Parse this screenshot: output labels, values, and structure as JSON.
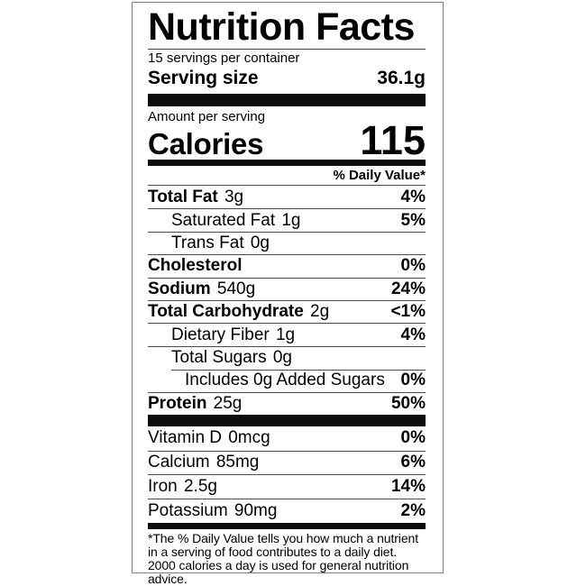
{
  "label": {
    "title": "Nutrition Facts",
    "servings_per_container": "15 servings per container",
    "serving_size_label": "Serving size",
    "serving_size_value": "36.1g",
    "amount_per_serving": "Amount per serving",
    "calories_label": "Calories",
    "calories_value": "115",
    "daily_value_header": "% Daily Value*",
    "nutrients": [
      {
        "name": "Total Fat",
        "amount": "3g",
        "dv": "4%",
        "bold": true,
        "indent": 0
      },
      {
        "name": "Saturated Fat",
        "amount": "1g",
        "dv": "5%",
        "bold": false,
        "indent": 1
      },
      {
        "name": "Trans Fat",
        "amount": "0g",
        "dv": "",
        "bold": false,
        "indent": 1
      },
      {
        "name": "Cholesterol",
        "amount": "",
        "dv": "0%",
        "bold": true,
        "indent": 0
      },
      {
        "name": "Sodium",
        "amount": "540g",
        "dv": "24%",
        "bold": true,
        "indent": 0
      },
      {
        "name": "Total Carbohydrate",
        "amount": "2g",
        "dv": "<1%",
        "bold": true,
        "indent": 0
      },
      {
        "name": "Dietary Fiber",
        "amount": "1g",
        "dv": "4%",
        "bold": false,
        "indent": 1
      },
      {
        "name": "Total Sugars",
        "amount": "0g",
        "dv": "",
        "bold": false,
        "indent": 1
      },
      {
        "name": "Includes 0g Added Sugars",
        "amount": "",
        "dv": "0%",
        "bold": false,
        "indent": 2,
        "sep": "indent"
      },
      {
        "name": "Protein",
        "amount": "25g",
        "dv": "50%",
        "bold": true,
        "indent": 0
      }
    ],
    "micronutrients": [
      {
        "name": "Vitamin D",
        "amount": "0mcg",
        "dv": "0%",
        "bold": false,
        "indent": 0
      },
      {
        "name": "Calcium",
        "amount": "85mg",
        "dv": "6%",
        "bold": false,
        "indent": 0
      },
      {
        "name": "Iron",
        "amount": "2.5g",
        "dv": "14%",
        "bold": false,
        "indent": 0
      },
      {
        "name": "Potassium",
        "amount": "90mg",
        "dv": "2%",
        "bold": false,
        "indent": 0
      }
    ],
    "footnote": "*The % Daily Value tells you how much a nutrient in a serving of food contributes to a daily diet. 2000 calories a day is used for general nutrition advice."
  },
  "colors": {
    "text": "#000000",
    "bar": "#0d0d0d",
    "hairline": "#4d4d4d",
    "outer_border": "#7f7f7f",
    "background": "#ffffff"
  }
}
